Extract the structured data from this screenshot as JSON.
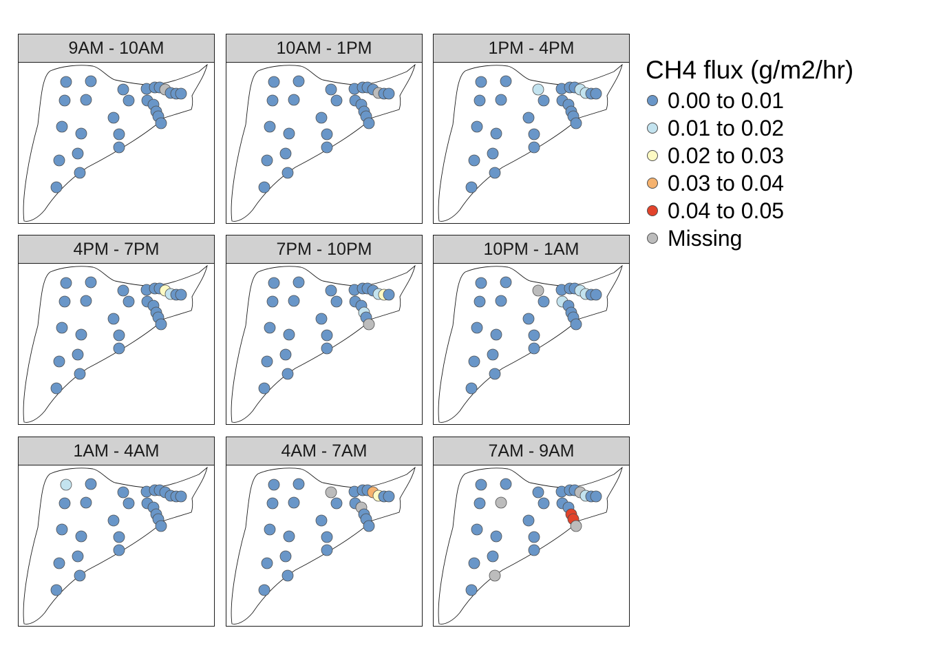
{
  "legend": {
    "title": "CH4 flux (g/m2/hr)",
    "items": [
      {
        "key": "c0",
        "label": "0.00 to 0.01",
        "color": "#6996c8"
      },
      {
        "key": "c1",
        "label": "0.01 to 0.02",
        "color": "#c3e3ef"
      },
      {
        "key": "c2",
        "label": "0.02 to 0.03",
        "color": "#fdfac4"
      },
      {
        "key": "c3",
        "label": "0.03 to 0.04",
        "color": "#f5b26e"
      },
      {
        "key": "c4",
        "label": "0.04 to 0.05",
        "color": "#e2432b"
      },
      {
        "key": "na",
        "label": "Missing",
        "color": "#bcbcbc"
      }
    ]
  },
  "panels": [
    {
      "label": "9AM - 10AM",
      "overrides": {
        "ne3": "na"
      }
    },
    {
      "label": "10AM - 1PM",
      "overrides": {
        "ne4": "na"
      }
    },
    {
      "label": "1PM - 4PM",
      "overrides": {
        "n3": "c1",
        "ne3": "c1",
        "ne4": "c1"
      }
    },
    {
      "label": "4PM - 7PM",
      "overrides": {
        "ne3": "c2",
        "ne4": "c1"
      }
    },
    {
      "label": "7PM - 10PM",
      "overrides": {
        "e3": "c1",
        "e5": "na",
        "ne4": "c1",
        "ne5": "c2"
      }
    },
    {
      "label": "10PM - 1AM",
      "overrides": {
        "n3": "na",
        "e1": "c1",
        "ne3": "c1",
        "ne4": "c1"
      }
    },
    {
      "label": "1AM - 4AM",
      "overrides": {
        "n1": "c1"
      }
    },
    {
      "label": "4AM - 7AM",
      "overrides": {
        "n3": "na",
        "e2": "na",
        "ne3": "c3",
        "ne4": "c2"
      }
    },
    {
      "label": "7AM - 9AM",
      "overrides": {
        "w2": "na",
        "sw3": "na",
        "ne3": "na",
        "ne4": "c1",
        "e3": "c4",
        "e4": "c4",
        "e5": "na"
      }
    }
  ]
}
